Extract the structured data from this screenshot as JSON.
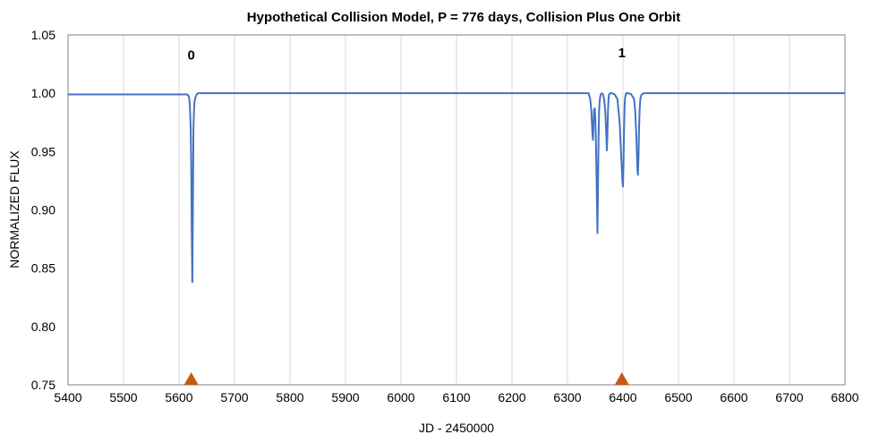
{
  "chart_data": {
    "type": "line",
    "title": "Hypothetical Collision Model, P = 776 days, Collision Plus One Orbit",
    "xlabel": "JD - 2450000",
    "ylabel": "NORMALIZED FLUX",
    "xlim": [
      5400,
      6800
    ],
    "ylim": [
      0.75,
      1.05
    ],
    "xticks": [
      5400,
      5500,
      5600,
      5700,
      5800,
      5900,
      6000,
      6100,
      6200,
      6300,
      6400,
      6500,
      6600,
      6700,
      6800
    ],
    "yticks": [
      "0.75",
      "0.80",
      "0.85",
      "0.90",
      "0.95",
      "1.00",
      "1.05"
    ],
    "grid": {
      "vertical": true,
      "horizontal": false
    },
    "series": [
      {
        "color": "#4472c4",
        "x": [
          5400,
          5615,
          5618,
          5619.5,
          5621,
          5622,
          5623,
          5624,
          5625,
          5626,
          5627,
          5628,
          5630,
          5632,
          5634,
          5640,
          6333,
          6338,
          6341,
          6343,
          6344,
          6345,
          6346,
          6347,
          6348,
          6349,
          6350,
          6351,
          6352,
          6353,
          6354,
          6355,
          6356,
          6357,
          6358,
          6359,
          6360,
          6362,
          6364,
          6366,
          6368,
          6370,
          6371,
          6372,
          6373,
          6374,
          6375,
          6377,
          6380,
          6385,
          6390,
          6394,
          6396,
          6398,
          6399,
          6400,
          6401,
          6402,
          6403,
          6404,
          6406,
          6408,
          6410,
          6415,
          6420,
          6422,
          6424,
          6425,
          6426,
          6427,
          6428,
          6429,
          6430,
          6431,
          6432,
          6434,
          6437,
          6440,
          6800
        ],
        "y": [
          0.999,
          0.999,
          0.997,
          0.99,
          0.97,
          0.94,
          0.88,
          0.838,
          0.9,
          0.97,
          0.985,
          0.993,
          0.997,
          0.999,
          1.0,
          1.0,
          1.0,
          1.0,
          0.995,
          0.985,
          0.975,
          0.965,
          0.96,
          0.975,
          0.986,
          0.987,
          0.98,
          0.965,
          0.94,
          0.91,
          0.88,
          0.92,
          0.96,
          0.985,
          0.993,
          0.997,
          0.999,
          1.0,
          0.999,
          0.995,
          0.985,
          0.965,
          0.951,
          0.965,
          0.985,
          0.995,
          0.999,
          1.0,
          1.0,
          0.999,
          0.995,
          0.975,
          0.955,
          0.935,
          0.925,
          0.92,
          0.94,
          0.97,
          0.99,
          0.997,
          1.0,
          1.0,
          1.0,
          0.999,
          0.995,
          0.985,
          0.965,
          0.95,
          0.935,
          0.93,
          0.945,
          0.97,
          0.985,
          0.993,
          0.997,
          0.999,
          1.0,
          1.0,
          1.0
        ]
      }
    ],
    "annotations": [
      {
        "text": "0",
        "x": 5622,
        "y": 1.029
      },
      {
        "text": "1",
        "x": 6398,
        "y": 1.031
      }
    ],
    "markers": [
      {
        "shape": "triangle",
        "color": "#c55a11",
        "x": 5622,
        "y": 0.75
      },
      {
        "shape": "triangle",
        "color": "#c55a11",
        "x": 6398,
        "y": 0.75
      }
    ]
  }
}
